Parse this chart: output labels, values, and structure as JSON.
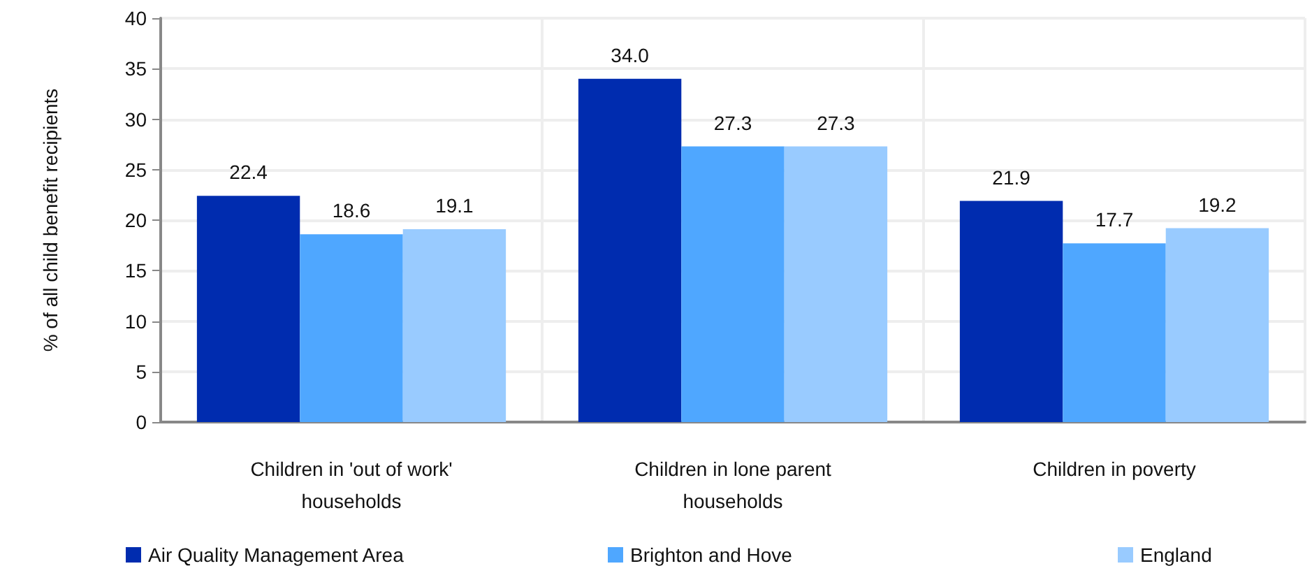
{
  "chart_data": {
    "type": "bar",
    "ylabel": "% of all child benefit recipients",
    "categories": [
      "Children in 'out of work' households",
      "Children in lone parent households",
      "Children in poverty"
    ],
    "series": [
      {
        "name": "Air Quality Management Area",
        "color": "#002caf",
        "values": [
          22.4,
          34.0,
          21.9
        ],
        "value_labels": [
          "22.4",
          "34.0",
          "21.9"
        ]
      },
      {
        "name": "Brighton and Hove",
        "color": "#4fa7ff",
        "values": [
          18.6,
          27.3,
          17.7
        ],
        "value_labels": [
          "18.6",
          "27.3",
          "17.7"
        ]
      },
      {
        "name": "England",
        "color": "#99cbff",
        "values": [
          19.1,
          27.3,
          19.2
        ],
        "value_labels": [
          "19.1",
          "27.3",
          "19.2"
        ]
      }
    ],
    "ylim": [
      0,
      40
    ],
    "yticks": [
      0,
      5,
      10,
      15,
      20,
      25,
      30,
      35,
      40
    ],
    "grid": true,
    "legend": "bottom"
  }
}
